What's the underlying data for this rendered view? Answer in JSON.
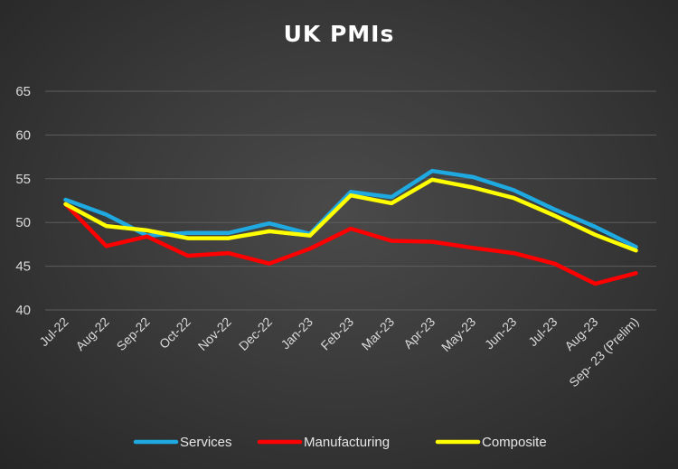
{
  "chart_data": {
    "type": "line",
    "title": "UK PMIs",
    "categories": [
      "Jul-22",
      "Aug-22",
      "Sep-22",
      "Oct-22",
      "Nov-22",
      "Dec-22",
      "Jan-23",
      "Feb-23",
      "Mar-23",
      "Apr-23",
      "May-23",
      "Jun-23",
      "Jul-23",
      "Aug-23",
      "Sep- 23 (Prelim)"
    ],
    "ylim": [
      40,
      65
    ],
    "yticks": [
      40,
      45,
      50,
      55,
      60,
      65
    ],
    "grid": true,
    "legend_position": "bottom",
    "series": [
      {
        "name": "Services",
        "color": "#1fa9e1",
        "values": [
          52.6,
          50.9,
          48.5,
          48.8,
          48.8,
          49.9,
          48.7,
          53.5,
          52.9,
          55.9,
          55.2,
          53.7,
          51.5,
          49.5,
          47.2
        ]
      },
      {
        "name": "Manufacturing",
        "color": "#ff0000",
        "values": [
          52.1,
          47.3,
          48.4,
          46.2,
          46.5,
          45.3,
          47.0,
          49.3,
          47.9,
          47.8,
          47.1,
          46.5,
          45.3,
          43.0,
          44.2
        ]
      },
      {
        "name": "Composite",
        "color": "#ffff00",
        "values": [
          52.1,
          49.6,
          49.1,
          48.2,
          48.2,
          49.0,
          48.5,
          53.1,
          52.2,
          54.9,
          54.0,
          52.8,
          50.8,
          48.6,
          46.8
        ]
      }
    ]
  }
}
